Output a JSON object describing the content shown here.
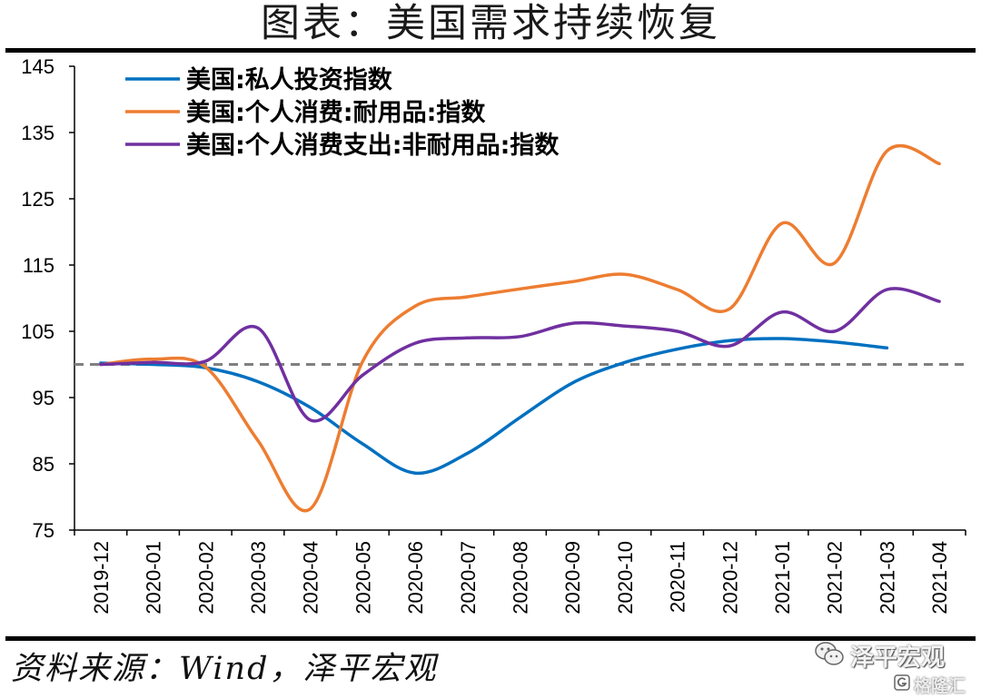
{
  "chart_data": {
    "type": "line",
    "title": "图表：美国需求持续恢复",
    "categories": [
      "2019-12",
      "2020-01",
      "2020-02",
      "2020-03",
      "2020-04",
      "2020-05",
      "2020-06",
      "2020-07",
      "2020-08",
      "2020-09",
      "2020-10",
      "2020-11",
      "2020-12",
      "2021-01",
      "2021-02",
      "2021-03",
      "2021-04"
    ],
    "series": [
      {
        "name": "美国:私人投资指数",
        "color": "#0070C0",
        "values": [
          100.2,
          100.0,
          99.5,
          97.4,
          93.5,
          88.0,
          83.6,
          86.6,
          92.0,
          97.2,
          100.3,
          102.3,
          103.6,
          103.9,
          103.4,
          102.5,
          null
        ]
      },
      {
        "name": "美国:个人消费:耐用品:指数",
        "color": "#ED7D31",
        "values": [
          100.0,
          100.8,
          99.6,
          88.5,
          78.2,
          100.5,
          108.8,
          110.2,
          111.4,
          112.5,
          113.6,
          111.3,
          108.4,
          121.3,
          115.3,
          132.2,
          130.3
        ]
      },
      {
        "name": "美国:个人消费支出:非耐用品:指数",
        "color": "#7030A0",
        "values": [
          100.0,
          100.3,
          100.5,
          105.5,
          91.6,
          98.4,
          103.2,
          104.0,
          104.2,
          106.2,
          105.8,
          105.0,
          102.8,
          107.9,
          105.0,
          111.3,
          109.5
        ]
      }
    ],
    "ylim": [
      75,
      145
    ],
    "yticks": [
      75,
      85,
      95,
      105,
      115,
      125,
      135,
      145
    ],
    "reference_line": {
      "value": 100,
      "color": "#808080"
    },
    "grid": false,
    "legend_position": "top-left"
  },
  "source": "资料来源：Wind，泽平宏观",
  "watermarks": {
    "account": "泽平宏观",
    "logo": "格隆汇"
  },
  "icons": {
    "account_icon": "wechat-icon",
    "logo_icon": "gelonghui-logo-icon"
  }
}
